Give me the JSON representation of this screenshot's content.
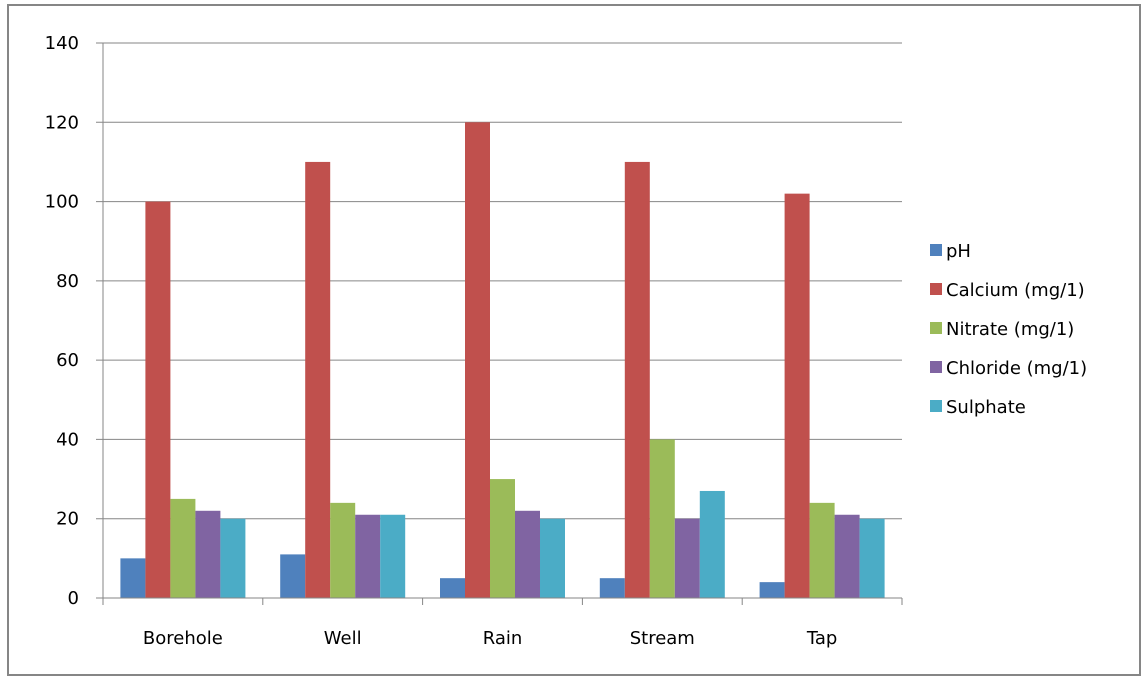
{
  "chart_data": {
    "type": "bar",
    "title": "",
    "xlabel": "",
    "ylabel": "",
    "categories": [
      "Borehole",
      "Well",
      "Rain",
      "Stream",
      "Tap"
    ],
    "series": [
      {
        "name": "pH",
        "color": "#4f81bd",
        "values": [
          10,
          11,
          5,
          5,
          4
        ]
      },
      {
        "name": "Calcium (mg/1)",
        "color": "#c0504d",
        "values": [
          100,
          110,
          120,
          110,
          102
        ]
      },
      {
        "name": "Nitrate (mg/1)",
        "color": "#9bbb59",
        "values": [
          25,
          24,
          30,
          40,
          24
        ]
      },
      {
        "name": "Chloride (mg/1)",
        "color": "#8064a2",
        "values": [
          22,
          21,
          22,
          20,
          21
        ]
      },
      {
        "name": "Sulphate",
        "color": "#4bacc6",
        "values": [
          20,
          21,
          20,
          27,
          20
        ]
      }
    ],
    "ylim": [
      0,
      140
    ],
    "yticks": [
      0,
      20,
      40,
      60,
      80,
      100,
      120,
      140
    ],
    "grid": true,
    "legend_position": "right"
  }
}
